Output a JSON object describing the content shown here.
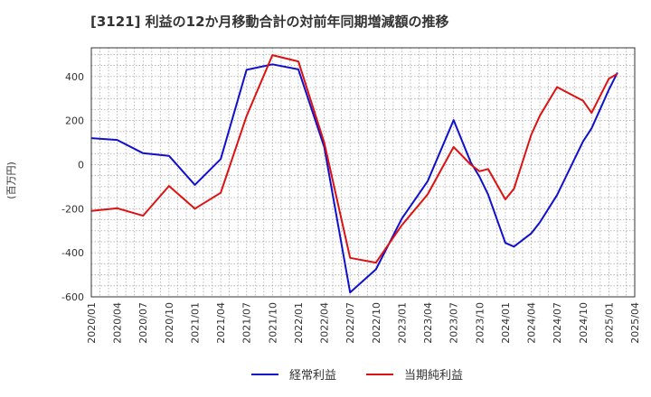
{
  "chart_data": {
    "type": "line",
    "title": "[3121]  利益の12か月移動合計の対前年同期増減額の推移",
    "ylabel": "(百万円)",
    "xlabel": "",
    "ylim": [
      -600,
      530
    ],
    "yticks": [
      400,
      200,
      0,
      -200,
      -400,
      -600
    ],
    "grid": true,
    "legend_position": "bottom-center",
    "x_tick_labels": [
      "2020/01",
      "2020/04",
      "2020/07",
      "2020/10",
      "2021/01",
      "2021/04",
      "2021/07",
      "2021/10",
      "2022/01",
      "2022/04",
      "2022/07",
      "2022/10",
      "2023/01",
      "2023/04",
      "2023/07",
      "2023/10",
      "2024/01",
      "2024/04",
      "2024/07",
      "2024/10",
      "2025/01",
      "2025/04"
    ],
    "x_start": "2020/01",
    "x_end": "2025/04",
    "series": [
      {
        "name": "経常利益",
        "color": "#1010cc",
        "points": [
          [
            "2020/01",
            120
          ],
          [
            "2020/04",
            112
          ],
          [
            "2020/07",
            52
          ],
          [
            "2020/10",
            40
          ],
          [
            "2021/01",
            -92
          ],
          [
            "2021/04",
            25
          ],
          [
            "2021/07",
            430
          ],
          [
            "2021/10",
            455
          ],
          [
            "2022/01",
            432
          ],
          [
            "2022/04",
            80
          ],
          [
            "2022/07",
            -580
          ],
          [
            "2022/10",
            -475
          ],
          [
            "2023/01",
            -245
          ],
          [
            "2023/04",
            -75
          ],
          [
            "2023/07",
            202
          ],
          [
            "2023/09",
            10
          ],
          [
            "2023/10",
            -55
          ],
          [
            "2023/11",
            -135
          ],
          [
            "2024/01",
            -355
          ],
          [
            "2024/02",
            -372
          ],
          [
            "2024/04",
            -312
          ],
          [
            "2024/05",
            -262
          ],
          [
            "2024/07",
            -138
          ],
          [
            "2024/10",
            105
          ],
          [
            "2024/11",
            165
          ],
          [
            "2025/01",
            340
          ],
          [
            "2025/02",
            418
          ]
        ]
      },
      {
        "name": "当期純利益",
        "color": "#dd1111",
        "points": [
          [
            "2020/01",
            -210
          ],
          [
            "2020/04",
            -198
          ],
          [
            "2020/07",
            -232
          ],
          [
            "2020/10",
            -97
          ],
          [
            "2021/01",
            -200
          ],
          [
            "2021/04",
            -128
          ],
          [
            "2021/07",
            220
          ],
          [
            "2021/10",
            497
          ],
          [
            "2022/01",
            468
          ],
          [
            "2022/04",
            100
          ],
          [
            "2022/07",
            -423
          ],
          [
            "2022/10",
            -445
          ],
          [
            "2023/01",
            -275
          ],
          [
            "2023/04",
            -135
          ],
          [
            "2023/07",
            80
          ],
          [
            "2023/09",
            0
          ],
          [
            "2023/10",
            -30
          ],
          [
            "2023/11",
            -20
          ],
          [
            "2024/01",
            -158
          ],
          [
            "2024/02",
            -110
          ],
          [
            "2024/04",
            135
          ],
          [
            "2024/05",
            222
          ],
          [
            "2024/07",
            352
          ],
          [
            "2024/10",
            290
          ],
          [
            "2024/11",
            235
          ],
          [
            "2025/01",
            390
          ],
          [
            "2025/02",
            412
          ]
        ]
      }
    ]
  }
}
